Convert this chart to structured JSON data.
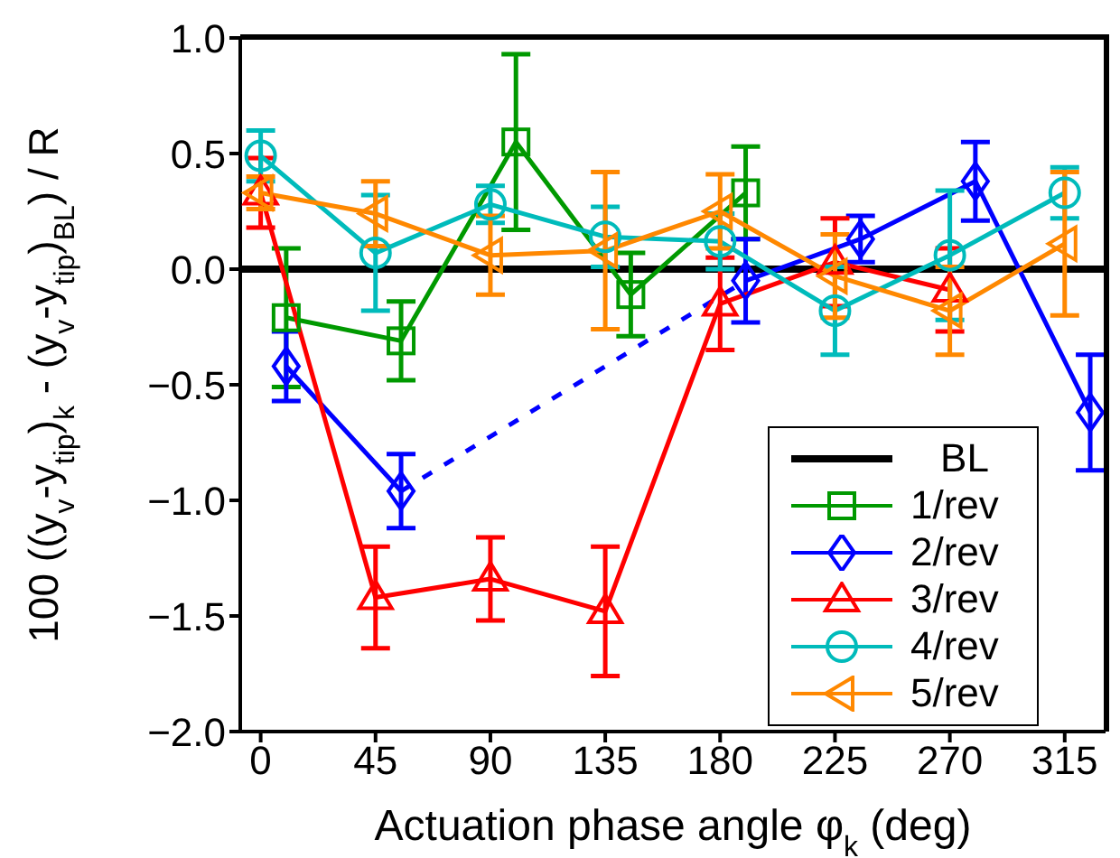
{
  "chart_data": {
    "type": "line",
    "xlabel": "Actuation phase angle φ$_{k}$ (deg)",
    "ylabel": "100 ((y$_{v}$-y$_{tip}$)$_{k}$ - (y$_{v}$-y$_{tip}$)$_{BL}$) / R",
    "xlim": [
      -8,
      331
    ],
    "xticks": [
      0,
      45,
      90,
      135,
      180,
      225,
      270,
      315
    ],
    "ylim": [
      -2,
      1
    ],
    "yticks": [
      {
        "value": -2,
        "label": "−2.0"
      },
      {
        "value": -1.5,
        "label": "−1.5"
      },
      {
        "value": -1,
        "label": "−1.0"
      },
      {
        "value": -0.5,
        "label": "−0.5"
      },
      {
        "value": 0,
        "label": "0.0"
      },
      {
        "value": 0.5,
        "label": "0.5"
      },
      {
        "value": 1,
        "label": "1.0"
      }
    ],
    "legend": "bottom right",
    "line_style": "solid",
    "series": [
      {
        "name": "BL",
        "color": "#000000",
        "marker": "none",
        "x": [
          -8,
          331
        ],
        "values": [
          0,
          0
        ]
      },
      {
        "name": "1/rev",
        "color": "#009900",
        "marker": "square",
        "x": [
          10,
          55,
          100,
          145,
          190
        ],
        "values": [
          -0.21,
          -0.31,
          0.55,
          -0.11,
          0.33
        ],
        "errors": [
          0.3,
          0.17,
          0.38,
          0.18,
          0.2
        ]
      },
      {
        "name": "2/rev",
        "color": "#0000ff",
        "marker": "diamond",
        "x": [
          10,
          55
        ],
        "values": [
          -0.42,
          -0.96
        ],
        "errors": [
          0.15,
          0.16
        ]
      },
      {
        "color": "#0000ff",
        "line_style": "dashed",
        "x": [
          55,
          190
        ],
        "values": [
          -0.96,
          -0.05
        ]
      },
      {
        "color": "#0000ff",
        "marker": "diamond",
        "x": [
          190,
          235,
          280,
          325
        ],
        "values": [
          -0.05,
          0.13,
          0.38,
          -0.62
        ],
        "errors": [
          0.18,
          0.1,
          0.17,
          0.25
        ]
      },
      {
        "name": "3/rev",
        "color": "#ff0000",
        "marker": "triangle",
        "x": [
          0,
          45,
          90,
          135,
          180,
          225,
          270
        ],
        "values": [
          0.33,
          -1.42,
          -1.34,
          -1.48,
          -0.15,
          0.03,
          -0.09
        ],
        "errors": [
          0.15,
          0.22,
          0.18,
          0.28,
          0.2,
          0.19,
          0.18
        ]
      },
      {
        "name": "4/rev",
        "color": "#00bbbb",
        "marker": "circle",
        "x": [
          0,
          45,
          90,
          135,
          180,
          225,
          270,
          315
        ],
        "values": [
          0.49,
          0.07,
          0.28,
          0.14,
          0.12,
          -0.18,
          0.06,
          0.33
        ],
        "errors": [
          0.11,
          0.25,
          0.08,
          0.13,
          0.12,
          0.19,
          0.28,
          0.11
        ]
      },
      {
        "name": "5/rev",
        "color": "#ff8800",
        "marker": "triangle-left",
        "x": [
          0,
          45,
          90,
          135,
          180,
          225,
          270,
          315
        ],
        "values": [
          0.33,
          0.24,
          0.06,
          0.08,
          0.25,
          -0.03,
          -0.18,
          0.11
        ],
        "errors": [
          0.07,
          0.14,
          0.17,
          0.34,
          0.16,
          0.18,
          0.19,
          0.31
        ]
      }
    ]
  }
}
